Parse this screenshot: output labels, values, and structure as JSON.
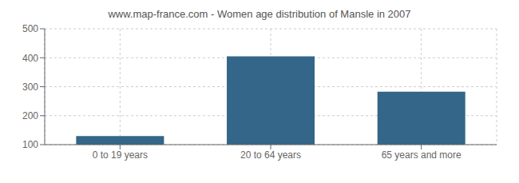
{
  "chart_data": {
    "type": "bar",
    "title": "www.map-france.com - Women age distribution of Mansle in 2007",
    "categories": [
      "0 to 19 years",
      "20 to 64 years",
      "65 years and more"
    ],
    "values": [
      130,
      405,
      283
    ],
    "color": "#336688",
    "ylim": [
      100,
      500
    ],
    "yticks": [
      100,
      200,
      300,
      400,
      500
    ],
    "grid": true
  }
}
